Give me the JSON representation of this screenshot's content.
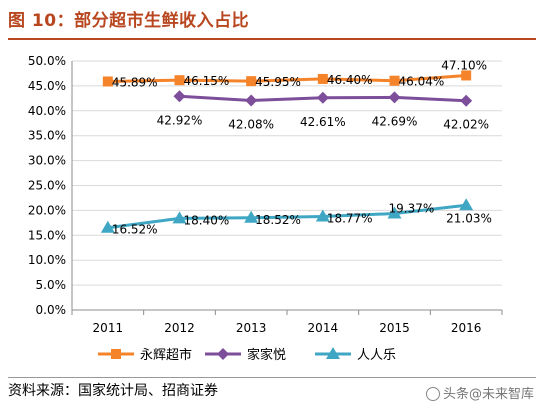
{
  "header": {
    "title": "图 10：部分超市生鲜收入占比"
  },
  "footer": {
    "source": "资料来源：国家统计局、招商证券",
    "watermark": "头条@未来智库"
  },
  "chart_data": {
    "type": "line",
    "title": "",
    "xlabel": "",
    "ylabel": "",
    "x": [
      "2011",
      "2012",
      "2013",
      "2014",
      "2015",
      "2016"
    ],
    "ylim": [
      0,
      50
    ],
    "yticks": [
      0,
      5,
      10,
      15,
      20,
      25,
      30,
      35,
      40,
      45,
      50
    ],
    "y_tick_format": "percent_1dp",
    "grid": true,
    "legend_position": "bottom",
    "series": [
      {
        "name": "永辉超市",
        "color": "#f5832a",
        "marker": "square",
        "values": [
          45.89,
          46.15,
          45.95,
          46.4,
          46.04,
          47.1
        ],
        "labels": [
          "45.89%",
          "46.15%",
          "45.95%",
          "46.40%",
          "46.04%",
          "47.10%"
        ]
      },
      {
        "name": "家家悦",
        "color": "#7d4e9a",
        "marker": "diamond",
        "values": [
          null,
          42.92,
          42.08,
          42.61,
          42.69,
          42.02
        ],
        "labels": [
          "",
          "42.92%",
          "42.08%",
          "42.61%",
          "42.69%",
          "42.02%"
        ]
      },
      {
        "name": "人人乐",
        "color": "#3fa7c4",
        "marker": "triangle",
        "values": [
          16.52,
          18.4,
          18.52,
          18.77,
          19.37,
          21.03
        ],
        "labels": [
          "16.52%",
          "18.40%",
          "18.52%",
          "18.77%",
          "19.37%",
          "21.03%"
        ]
      }
    ]
  }
}
